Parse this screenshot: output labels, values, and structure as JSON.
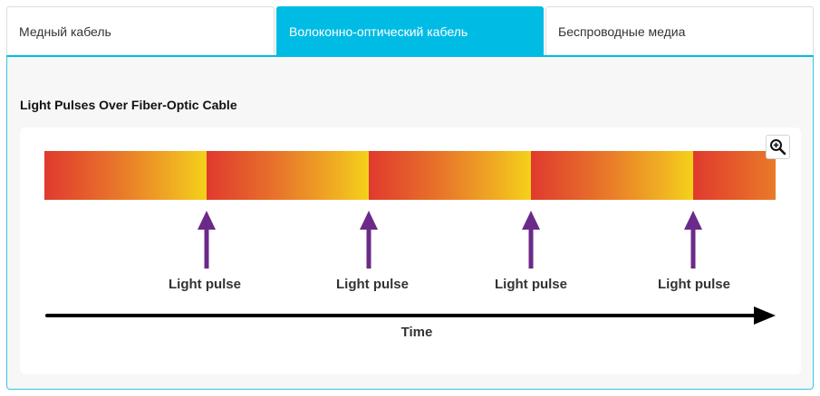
{
  "tabs": [
    {
      "label": "Медный кабель",
      "active": false
    },
    {
      "label": "Волоконно-оптический кабель",
      "active": true
    },
    {
      "label": "Беспроводные медиа",
      "active": false
    }
  ],
  "panel": {
    "title": "Light Pulses Over Fiber-Optic Cable",
    "zoom_icon": "zoom-in-icon"
  },
  "diagram": {
    "pulse_label_1": "Light pulse",
    "pulse_label_2": "Light pulse",
    "pulse_label_3": "Light pulse",
    "pulse_label_4": "Light pulse",
    "time_label": "Time"
  },
  "colors": {
    "accent": "#00bce4",
    "pulse_red": "#e03a2e",
    "pulse_orange": "#ea7a28",
    "pulse_yellow": "#f5cf1a",
    "arrow_purple": "#6b2a8a",
    "time_arrow": "#000000"
  }
}
